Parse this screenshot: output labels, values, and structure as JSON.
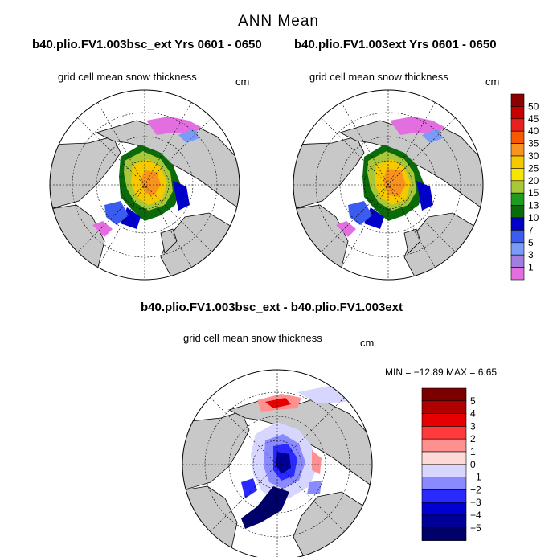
{
  "header": {
    "title": "ANN Mean"
  },
  "panel_left": {
    "case_title": "b40.plio.FV1.003bsc_ext  Yrs 0601 - 0650",
    "variable": "grid cell mean snow thickness",
    "units": "cm"
  },
  "panel_right": {
    "case_title": "b40.plio.FV1.003ext  Yrs 0601 - 0650",
    "variable": "grid cell mean snow thickness",
    "units": "cm"
  },
  "panel_diff": {
    "case_title": "b40.plio.FV1.003bsc_ext - b40.plio.FV1.003ext",
    "variable": "grid cell mean snow thickness",
    "units": "cm",
    "min_max": "MIN = −12.89 MAX =    6.65"
  },
  "colorbar_abs": {
    "labels": [
      "50",
      "45",
      "40",
      "35",
      "30",
      "25",
      "20",
      "15",
      "13",
      "10",
      "7",
      "5",
      "3",
      "1"
    ],
    "colors": [
      "#8b0000",
      "#c40000",
      "#e8201e",
      "#f55a00",
      "#f7931e",
      "#f5c800",
      "#f4e600",
      "#a8c83a",
      "#1f9c1f",
      "#0b6b0b",
      "#0000c8",
      "#3b5cf0",
      "#7a9cf6",
      "#a27ee0",
      "#e36ee0"
    ]
  },
  "colorbar_diff": {
    "labels": [
      "5",
      "4",
      "3",
      "2",
      "1",
      "0",
      "−1",
      "−2",
      "−3",
      "−4",
      "−5"
    ],
    "colors": [
      "#7a0000",
      "#b00000",
      "#e60000",
      "#ff3a3a",
      "#ff9090",
      "#ffd8d8",
      "#d6d6ff",
      "#8a8aff",
      "#2a2aff",
      "#0000d0",
      "#000096",
      "#00006a"
    ]
  }
}
